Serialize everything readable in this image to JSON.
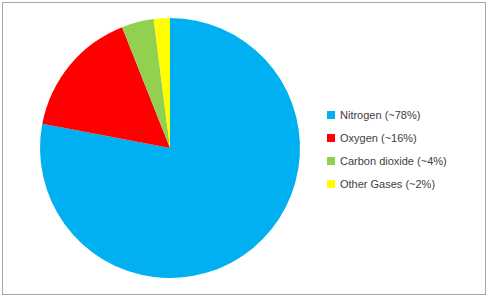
{
  "chart_data": {
    "type": "pie",
    "categories": [
      "Nitrogen (~78%)",
      "Oxygen (~16%)",
      "Carbon dioxide (~4%)",
      "Other Gases (~2%)"
    ],
    "values": [
      78,
      16,
      4,
      2
    ],
    "colors": [
      "#00b0f0",
      "#ff0000",
      "#92d050",
      "#ffff00"
    ],
    "legend": "right"
  }
}
